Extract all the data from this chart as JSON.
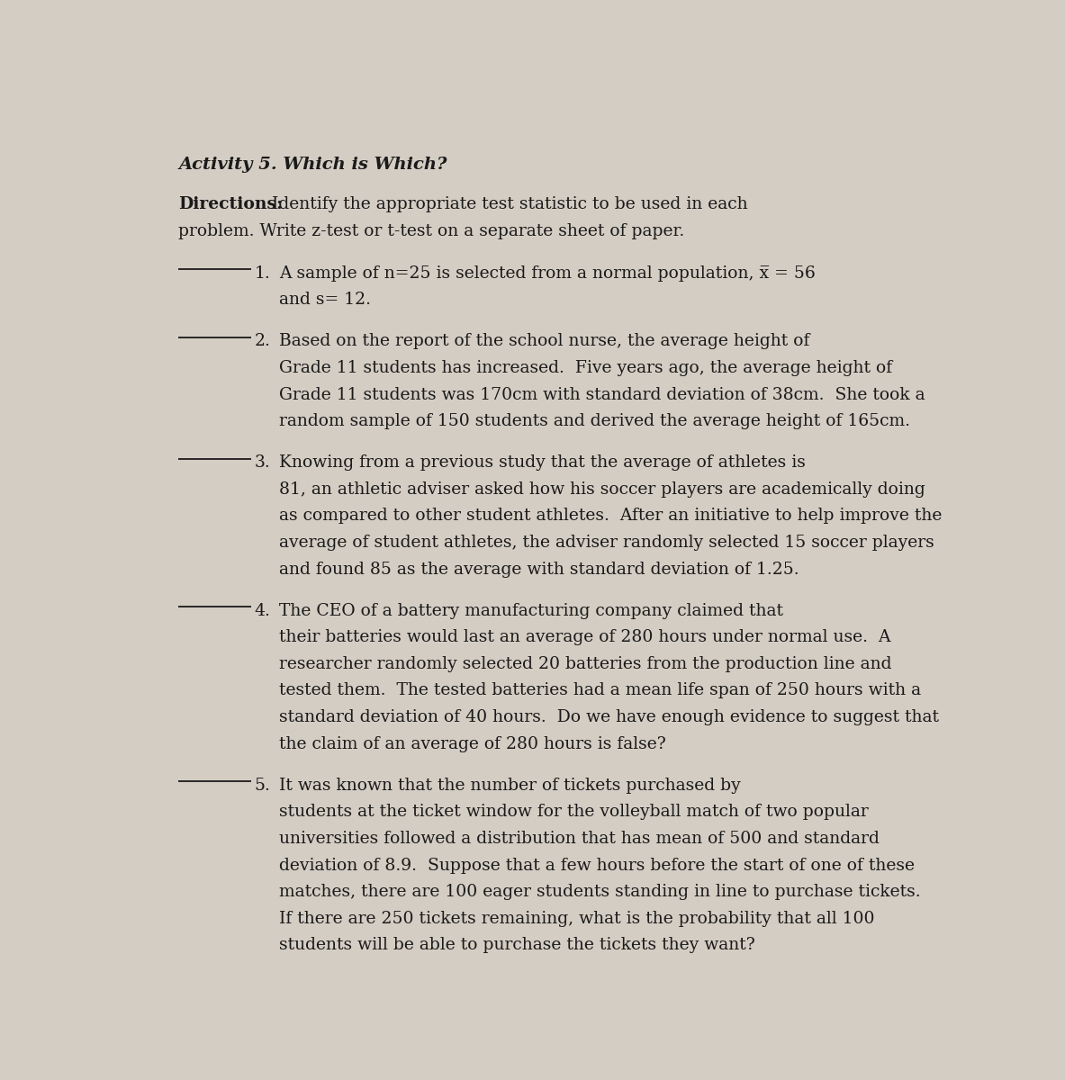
{
  "background_color": "#d4cdc3",
  "title": "Activity 5. Which is Which?",
  "title_fontsize": 14.0,
  "body_fontsize": 13.5,
  "directions_label": "Directions:",
  "directions_line1": " Identify the appropriate test statistic to be used in each",
  "directions_line2": "problem. Write z-test or t-test on a separate sheet of paper.",
  "items": [
    {
      "number": "1.",
      "text_lines": [
        "A sample of n=25 is selected from a normal population, x̅ = 56",
        "and s= 12."
      ]
    },
    {
      "number": "2.",
      "text_lines": [
        "Based on the report of the school nurse, the average height of",
        "Grade 11 students has increased.  Five years ago, the average height of",
        "Grade 11 students was 170cm with standard deviation of 38cm.  She took a",
        "random sample of 150 students and derived the average height of 165cm."
      ]
    },
    {
      "number": "3.",
      "text_lines": [
        "Knowing from a previous study that the average of athletes is",
        "81, an athletic adviser asked how his soccer players are academically doing",
        "as compared to other student athletes.  After an initiative to help improve the",
        "average of student athletes, the adviser randomly selected 15 soccer players",
        "and found 85 as the average with standard deviation of 1.25."
      ]
    },
    {
      "number": "4.",
      "text_lines": [
        "The CEO of a battery manufacturing company claimed that",
        "their batteries would last an average of 280 hours under normal use.  A",
        "researcher randomly selected 20 batteries from the production line and",
        "tested them.  The tested batteries had a mean life span of 250 hours with a",
        "standard deviation of 40 hours.  Do we have enough evidence to suggest that",
        "the claim of an average of 280 hours is false?"
      ]
    },
    {
      "number": "5.",
      "text_lines": [
        "It was known that the number of tickets purchased by",
        "students at the ticket window for the volleyball match of two popular",
        "universities followed a distribution that has mean of 500 and standard",
        "deviation of 8.9.  Suppose that a few hours before the start of one of these",
        "matches, there are 100 eager students standing in line to purchase tickets.",
        "If there are 250 tickets remaining, what is the probability that all 100",
        "students will be able to purchase the tickets they want?"
      ]
    }
  ]
}
